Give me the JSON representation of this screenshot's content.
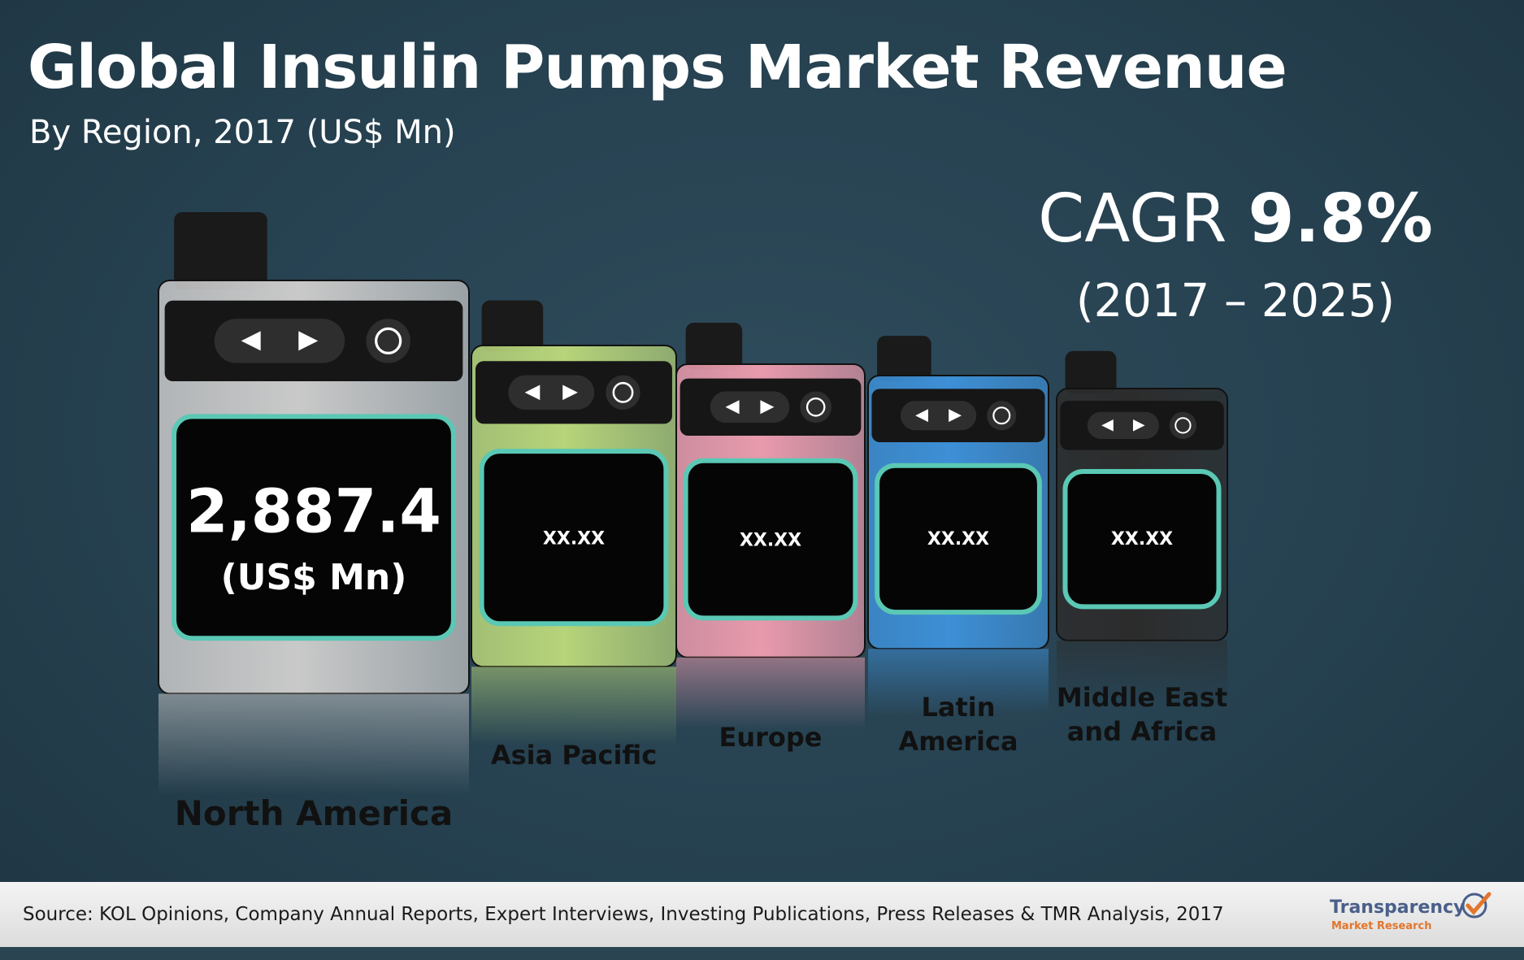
{
  "chart_data": {
    "type": "bar",
    "title": "Global Insulin Pumps Market Revenue",
    "subtitle": "By Region, 2017 (US$ Mn)",
    "categories": [
      "North America",
      "Asia Pacific",
      "Europe",
      "Latin America",
      "Middle East and Africa"
    ],
    "values": [
      2887.4,
      null,
      null,
      null,
      null
    ],
    "value_labels": [
      "2,887.4",
      "XX.XX",
      "XX.XX",
      "XX.XX",
      "XX.XX"
    ],
    "unit_label": "(US$ Mn)",
    "category_labels": [
      [
        "North America"
      ],
      [
        "Asia Pacific"
      ],
      [
        "Europe"
      ],
      [
        "Latin",
        "America"
      ],
      [
        "Middle East",
        "and Africa"
      ]
    ],
    "device_colors": [
      "#c9c9c9",
      "#b7d47a",
      "#e89aac",
      "#3d8fd6",
      "#2c2c2c"
    ],
    "screen_accent": "#5ac8b4"
  },
  "cagr": {
    "label": "CAGR",
    "value": "9.8%",
    "period": "(2017 – 2025)"
  },
  "source": "Source: KOL Opinions, Company Annual Reports, Expert Interviews, Investing Publications, Press Releases & TMR Analysis, 2017",
  "logo": {
    "name": "Transparency",
    "sub": "Market Research",
    "icon": "checkmark-icon"
  }
}
